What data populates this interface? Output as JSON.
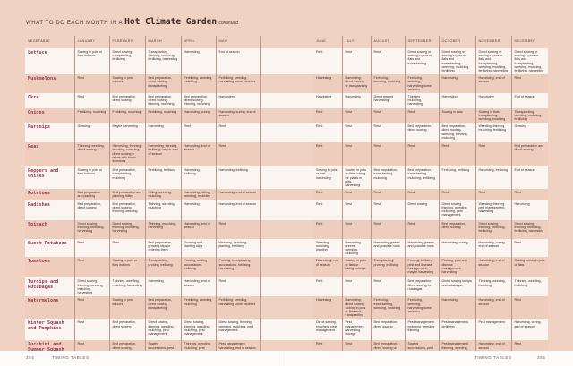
{
  "title": {
    "prefix": "WHAT TO DO EACH MONTH IN A",
    "emphasis": "Hot Climate Garden",
    "suffix": "continued"
  },
  "columns": [
    "VEGETABLE",
    "JANUARY",
    "FEBRUARY",
    "MARCH",
    "APRIL",
    "MAY",
    "JUNE",
    "JULY",
    "AUGUST",
    "SEPTEMBER",
    "OCTOBER",
    "NOVEMBER",
    "DECEMBER"
  ],
  "rows": [
    {
      "vegetable": "Lettuce",
      "months": [
        "Sowing in pots or flats indoors",
        "Direct sowing, transplanting, fertilizing",
        "Transplanting, thinning, mulching, fertilizing, harvesting",
        "Harvesting",
        "End of season",
        "Rest",
        "Rest",
        "Rest",
        "Direct sowing or sowing in pots or flats and transplanting",
        "Direct sowing or sowing in pots or flats and transplanting, weeding, mulching, fertilizing",
        "Direct sowing or sowing in pots or flats and transplanting, weeding, mulching, fertilizing, harvesting",
        "Direct sowing or sowing in pots or flats and transplanting, weeding, mulching, fertilizing, harvesting"
      ]
    },
    {
      "vegetable": "Muskmelons",
      "months": [
        "Rest",
        "Sowing in pots indoors",
        "Bed preparation, direct sowing, transplanting",
        "Fertilizing, weeding, mulching",
        "Fertilizing, weeding, harvesting some varieties",
        "Harvesting",
        "Harvesting, direct sowing or transplanting",
        "Fertilizing, weeding, mulching",
        "Fertilizing, weeding, harvesting some varieties",
        "Harvesting",
        "Harvesting, end of season",
        "Rest"
      ]
    },
    {
      "vegetable": "Okra",
      "months": [
        "Rest",
        "Bed preparation, direct sowing",
        "Bed preparation, direct sowing, thinning, mulching",
        "Bed preparation, direct sowing, thinning, mulching",
        "Harvesting",
        "Harvesting",
        "Harvesting",
        "Direct sowing, harvesting",
        "Thinning, mulching, harvesting",
        "Harvesting",
        "Harvesting",
        "End of season"
      ]
    },
    {
      "vegetable": "Onions",
      "months": [
        "Fertilizing, mulching",
        "Fertilizing, mulching",
        "Fertilizing, mulching",
        "Harvesting, curing",
        "Harvesting, curing, end of season",
        "Rest",
        "Rest",
        "Rest",
        "Rest",
        "Sowing in flats",
        "Sowing in flats, transplanting, weeding, mulching",
        "Transplanting, weeding, mulching, fertilizing"
      ]
    },
    {
      "vegetable": "Parsnips",
      "months": [
        "Growing",
        "Maybe harvesting",
        "Harvesting",
        "Rest",
        "Rest",
        "Rest",
        "Rest",
        "Rest",
        "Bed preparation, direct sowing",
        "Bed preparation, direct sowing, weeding, thinning, mulching",
        "Weeding, thinning, mulching, fertilizing",
        "Growing"
      ]
    },
    {
      "vegetable": "Peas",
      "months": [
        "Thinning, weeding, direct sowing",
        "Harvesting, thinning, weeding, mulching, direct sowing in areas with cooler summers",
        "Harvesting, thinning, trellising, maybe end of season",
        "Harvesting, end of season",
        "Rest",
        "Rest",
        "Rest",
        "Rest",
        "Rest",
        "Rest",
        "Rest",
        "Bed preparation and direct sowing"
      ]
    },
    {
      "vegetable": "Peppers and Chiles",
      "months": [
        "Sowing in pots or flats indoors",
        "Bed preparation, transplanting, mulching",
        "Fertilizing, trellising",
        "Harvesting, trellising",
        "Harvesting, trellising",
        "Sowing in pots or flats, harvesting",
        "Sowing in pots or flats, caring for plants in pots, harvesting",
        "Bed preparation, transplanting, mulching",
        "Bed preparation, transplanting, mulching, fertilizing",
        "Fertilizing, trellising",
        "Harvesting, trellising",
        "End of season"
      ]
    },
    {
      "vegetable": "Potatoes",
      "months": [
        "Bed preparation and planting",
        "Bed preparation and planting, hilling",
        "Hilling, weeding, mulching",
        "Harvesting, hilling, weeding, mulching",
        "Harvesting, end of season",
        "Rest",
        "Rest",
        "Rest",
        "Rest",
        "Rest",
        "Rest",
        "Rest"
      ]
    },
    {
      "vegetable": "Radishes",
      "months": [
        "Bed preparation, direct sowing",
        "Bed preparation, direct sowing, thinning, weeding",
        "Thinning, weeding, mulching",
        "Harvesting",
        "Harvesting, end of season",
        "Rest",
        "Rest",
        "Rest",
        "Direct sowing",
        "Direct sowing, thinning, weeding, mulching, pest management",
        "Weeding, thinning, pest management, harvesting",
        "Harvesting"
      ]
    },
    {
      "vegetable": "Spinach",
      "months": [
        "Direct sowing, thinning, mulching, harvesting",
        "Direct sowing, thinning, mulching, harvesting",
        "Thinning, mulching, harvesting",
        "Harvesting, end of season",
        "Rest",
        "Rest",
        "Rest",
        "Rest",
        "Rest",
        "Bed preparation, direct sowing",
        "Direct sowing, thinning, mulching, fertilizing",
        "Direct sowing, thinning, mulching, fertilizing, harvesting"
      ]
    },
    {
      "vegetable": "Sweet Potatoes",
      "months": [
        "Rest",
        "Rest",
        "Bed preparation, growing slips or ordering them",
        "Growing and planting slips",
        "Weeding, mulching, planting, fertilizing",
        "Weeding, mulching, planting",
        "Harvesting greens, weeding, mulching",
        "Harvesting greens and possible roots",
        "Harvesting greens and possible roots",
        "Harvesting, curing",
        "Harvesting, curing, end of season",
        "Rest"
      ]
    },
    {
      "vegetable": "Tomatoes",
      "months": [
        "Rest",
        "Sowing in pots or flats indoors",
        "Transplanting, pruning, trellising",
        "Pruning, sowing successions, trellising",
        "Pruning, transplanting successions, trellising, harvesting",
        "Harvesting, end of season",
        "Sowing in pots or flats or taking cuttings",
        "Transplanting, pruning, trellising",
        "Pruning, trellising, pest and disease management, maybe harvesting",
        "Pruning, pest and disease management, harvesting",
        "Harvesting, end of season",
        "Sowing seeds in pots or flats"
      ]
    },
    {
      "vegetable": "Turnips and Rutabagas",
      "months": [
        "Direct sowing, thinning, weeding, mulching, harvesting",
        "Thinning, weeding, mulching, harvesting",
        "Harvesting",
        "Harvesting, end of season",
        "Rest",
        "Rest",
        "Rest",
        "Rest",
        "Bed preparation, direct sowing for rutabagas",
        "Direct sowing turnips and rutabagas",
        "Thinning, weeding, mulching",
        "Thinning, weeding, mulching"
      ]
    },
    {
      "vegetable": "Watermelons",
      "months": [
        "Rest",
        "Sowing in pots indoors",
        "Bed preparation, direct sowing, transplanting",
        "Fertilizing, weeding, mulching",
        "Fertilizing, weeding, harvesting some varieties",
        "Harvesting",
        "Harvesting, direct sowing, sowing in pots or flats and transplanting",
        "Fertilizing, transplanting, weeding, mulching",
        "Fertilizing, weeding, harvesting some varieties",
        "Harvesting",
        "Harvesting, end of season",
        "Rest"
      ]
    },
    {
      "vegetable": "Winter Squash and Pumpkins",
      "months": [
        "Rest",
        "Bed preparation, direct sowing",
        "Direct sowing, thinning, weeding, mulching, pest management",
        "Direct sowing, thinning, weeding, mulching, pest management",
        "Direct sowing, thinning, weeding, mulching, pest management",
        "Direct sowing, mulching, pest management",
        "Pest management, harvesting, storage",
        "Bed preparation, direct sowing",
        "Pest management, mulching, weeding, thinning",
        "Pest management, fertilizing",
        "Pest management",
        "Harvesting, curing, end of season"
      ]
    },
    {
      "vegetable": "Zucchini and Summer Squash",
      "months": [
        "Rest",
        "Bed preparation, direct sowing, sowing in pots or flats, transplanting",
        "Sowing successions, pest management, thinning",
        "Thinning, weeding, mulching, pest management, fertilizing, harvesting",
        "Pest management, harvesting, end of season",
        "Rest",
        "Rest",
        "Bed preparation, direct sowing or sowing in pots or flats and transplanting",
        "Sowing successions, pest management, weeding, mulching, thinning",
        "Pest management, thinning, weeding, mulching, harvesting",
        "Harvesting, end of season",
        "Rest"
      ]
    }
  ],
  "footer": {
    "left_page": "354",
    "left_label": "TIMING TABLES",
    "right_label": "TIMING TABLES",
    "right_page": "355"
  },
  "colors": {
    "background": "#f0d2c3",
    "row_light": "#fbf5f2",
    "row_shaded": "#efcdbd",
    "vegetable_name": "#9c3550"
  }
}
